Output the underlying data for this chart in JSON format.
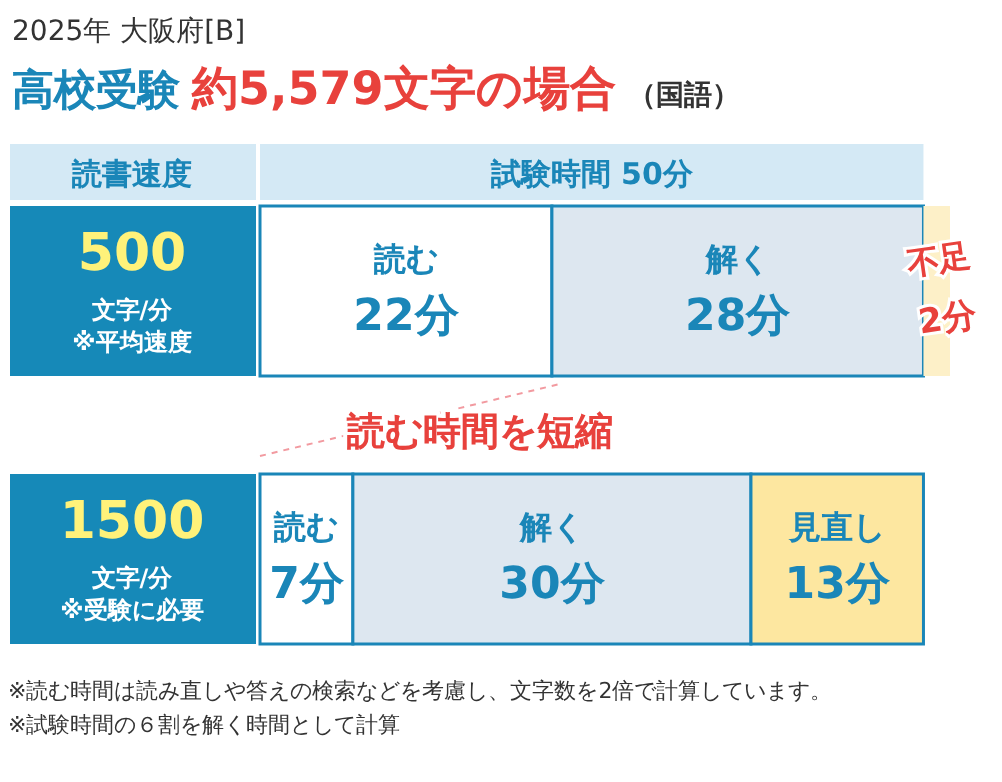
{
  "chart_data": {
    "type": "bar",
    "orientation": "horizontal",
    "stacked": true,
    "title": "2025年 大阪府[B]",
    "subtitle": "高校受験 約5,579文字の場合 （国語）",
    "categories": [
      "500\n文字/分\n※平均速度",
      "1500\n文字/分\n※受験に必要"
    ],
    "series": [
      {
        "name": "読む",
        "color": "#ffffff",
        "values": [
          22,
          7
        ],
        "value_labels": [
          "22分",
          "7分"
        ]
      },
      {
        "name": "解く",
        "color": "#dde7f0",
        "values": [
          28,
          30
        ],
        "value_labels": [
          "28分",
          "30分"
        ]
      },
      {
        "name": "見直し",
        "color": "#fde7a0",
        "values": [
          null,
          13
        ],
        "value_labels": [
          null,
          "13分"
        ]
      },
      {
        "name": "不足",
        "color": "#fdf0c8",
        "values": [
          2,
          null
        ],
        "value_labels": [
          "2分",
          null
        ]
      }
    ],
    "annotations": [
      "読書速度",
      "試験時間 50分",
      "読む時間を短縮",
      "※読む時間は読み直しや答えの検索などを考慮し、文字数を2倍で計算しています。",
      "※試験時間の６割を解く時間として計算"
    ]
  }
}
